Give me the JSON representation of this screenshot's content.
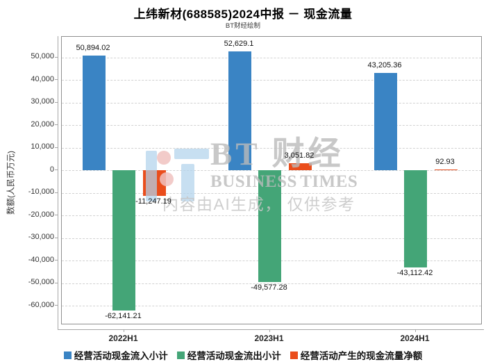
{
  "title": "上纬新材(688585)2024中报 － 现金流量",
  "subtitle": "BT财经绘制",
  "watermark": {
    "brand_cn": "BT 财经",
    "brand_en": "BUSINESS TIMES",
    "ai_note": "内容由AI生成， 仅供参考"
  },
  "chart_data": {
    "type": "bar",
    "title": "上纬新材(688585)2024中报 － 现金流量",
    "subtitle": "BT财经绘制",
    "categories": [
      "2022H1",
      "2023H1",
      "2024H1"
    ],
    "series": [
      {
        "name": "经营活动现金流入小计",
        "color": "#3a84c4",
        "values": [
          50894.02,
          52629.1,
          43205.36
        ],
        "labels": [
          "50,894.02",
          "52,629.1",
          "43,205.36"
        ]
      },
      {
        "name": "经营活动现金流出小计",
        "color": "#44a577",
        "values": [
          -62141.21,
          -49577.28,
          -43112.42
        ],
        "labels": [
          "-62,141.21",
          "-49,577.28",
          "-43,112.42"
        ]
      },
      {
        "name": "经营活动产生的现金流量净额",
        "color": "#ea4d1c",
        "values": [
          -11247.19,
          3051.82,
          92.93
        ],
        "labels": [
          "-11,247.19",
          "3,051.82",
          "92.93"
        ]
      }
    ],
    "xlabel": "",
    "ylabel": "数额(人民币万元)",
    "ytick_values": [
      50000,
      40000,
      30000,
      20000,
      10000,
      0,
      -10000,
      -20000,
      -30000,
      -40000,
      -50000,
      -60000
    ],
    "ytick_labels": [
      "50,000",
      "40,000",
      "30,000",
      "20,000",
      "10,000",
      "0",
      "-10,000",
      "-20,000",
      "-30,000",
      "-40,000",
      "-50,000",
      "-60,000"
    ],
    "ylim": [
      -68600,
      59100
    ],
    "grid": "horizontal-dashed",
    "legend_position": "bottom"
  }
}
